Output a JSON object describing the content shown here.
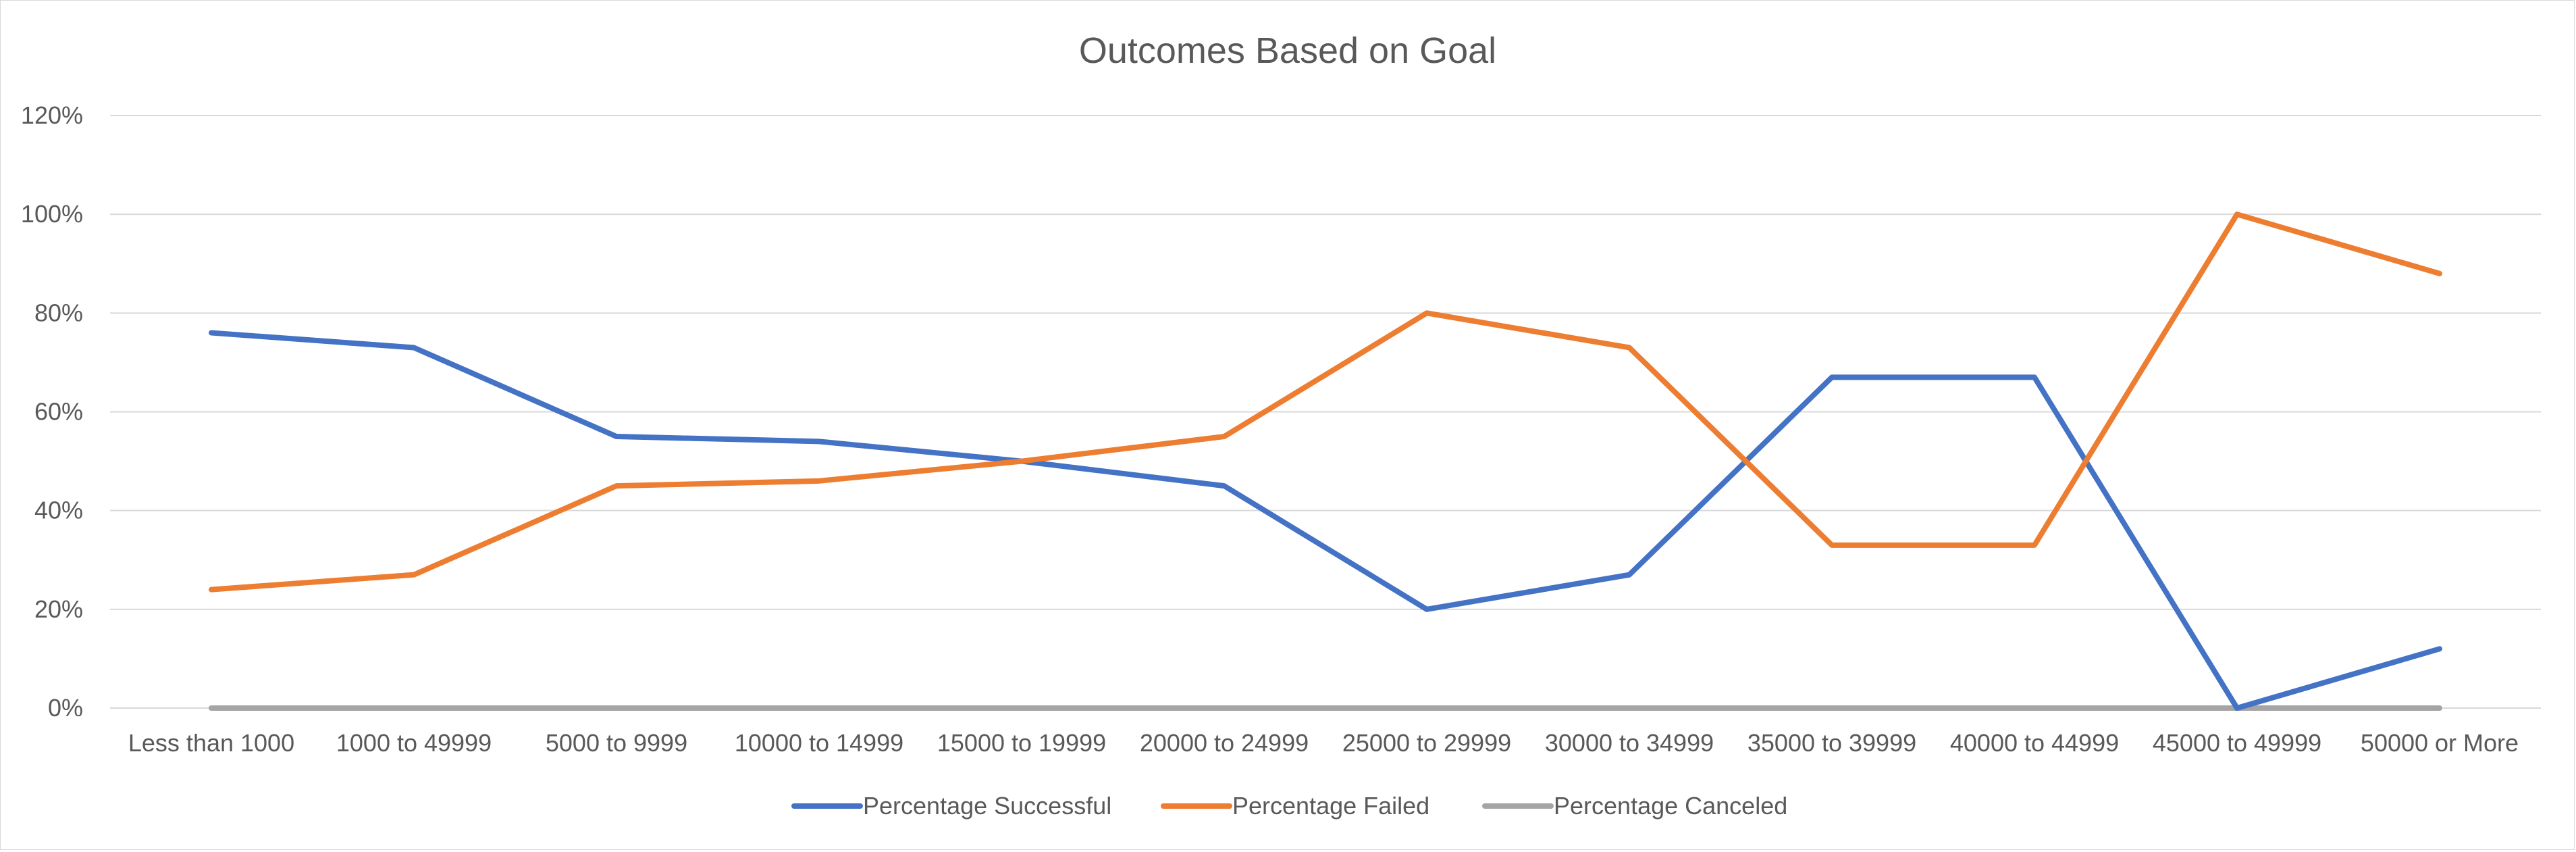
{
  "chart_data": {
    "type": "line",
    "title": "Outcomes Based on Goal",
    "xlabel": "",
    "ylabel": "",
    "categories": [
      "Less than 1000",
      "1000 to 49999",
      "5000 to 9999",
      "10000 to 14999",
      "15000 to 19999",
      "20000 to 24999",
      "25000 to 29999",
      "30000 to 34999",
      "35000 to 39999",
      "40000 to 44999",
      "45000 to 49999",
      "50000 or More"
    ],
    "ylim": [
      0,
      1.2
    ],
    "yticks": [
      0,
      0.2,
      0.4,
      0.6,
      0.8,
      1.0,
      1.2
    ],
    "ytick_labels": [
      "0%",
      "20%",
      "40%",
      "60%",
      "80%",
      "100%",
      "120%"
    ],
    "grid": true,
    "legend_position": "bottom",
    "series": [
      {
        "name": "Percentage Successful",
        "color": "#4472C4",
        "values": [
          0.76,
          0.73,
          0.55,
          0.54,
          0.5,
          0.45,
          0.2,
          0.27,
          0.67,
          0.67,
          0.0,
          0.12
        ]
      },
      {
        "name": "Percentage Failed",
        "color": "#ED7D31",
        "values": [
          0.24,
          0.27,
          0.45,
          0.46,
          0.5,
          0.55,
          0.8,
          0.73,
          0.33,
          0.33,
          1.0,
          0.88
        ]
      },
      {
        "name": "Percentage Canceled",
        "color": "#A5A5A5",
        "values": [
          0,
          0,
          0,
          0,
          0,
          0,
          0,
          0,
          0,
          0,
          0,
          0
        ]
      }
    ]
  }
}
